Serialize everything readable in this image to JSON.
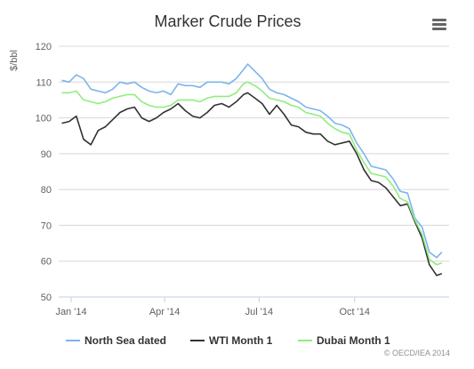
{
  "chart_data": {
    "type": "line",
    "title": "Marker Crude Prices",
    "ylabel": "$/bbl",
    "xlabel": "",
    "ylim": [
      50,
      120
    ],
    "yticks": [
      50,
      60,
      70,
      80,
      90,
      100,
      110,
      120
    ],
    "xlim": [
      "2013-12-20",
      "2014-12-31"
    ],
    "xticks": [
      {
        "date": "2014-01-01",
        "label": "Jan '14"
      },
      {
        "date": "2014-04-01",
        "label": "Apr '14"
      },
      {
        "date": "2014-07-01",
        "label": "Jul '14"
      },
      {
        "date": "2014-10-01",
        "label": "Oct '14"
      }
    ],
    "grid": true,
    "legend_position": "bottom",
    "colors": {
      "north_sea": "#7cb5ec",
      "wti": "#333333",
      "dubai": "#90ed7d"
    },
    "series": [
      {
        "name": "North Sea dated",
        "key": "north_sea",
        "points": [
          [
            "2013-12-23",
            110.5
          ],
          [
            "2013-12-30",
            110.0
          ],
          [
            "2014-01-06",
            112.0
          ],
          [
            "2014-01-13",
            111.0
          ],
          [
            "2014-01-20",
            108.0
          ],
          [
            "2014-01-27",
            107.5
          ],
          [
            "2014-02-03",
            107.0
          ],
          [
            "2014-02-10",
            108.0
          ],
          [
            "2014-02-17",
            110.0
          ],
          [
            "2014-02-24",
            109.5
          ],
          [
            "2014-03-03",
            110.0
          ],
          [
            "2014-03-10",
            108.5
          ],
          [
            "2014-03-17",
            107.5
          ],
          [
            "2014-03-24",
            107.0
          ],
          [
            "2014-03-31",
            107.5
          ],
          [
            "2014-04-07",
            106.5
          ],
          [
            "2014-04-14",
            109.5
          ],
          [
            "2014-04-21",
            109.0
          ],
          [
            "2014-04-28",
            109.0
          ],
          [
            "2014-05-05",
            108.5
          ],
          [
            "2014-05-12",
            110.0
          ],
          [
            "2014-05-19",
            110.0
          ],
          [
            "2014-05-26",
            110.0
          ],
          [
            "2014-06-02",
            109.5
          ],
          [
            "2014-06-09",
            111.0
          ],
          [
            "2014-06-16",
            113.5
          ],
          [
            "2014-06-20",
            115.0
          ],
          [
            "2014-06-27",
            113.0
          ],
          [
            "2014-07-04",
            111.0
          ],
          [
            "2014-07-11",
            108.0
          ],
          [
            "2014-07-18",
            107.0
          ],
          [
            "2014-07-25",
            106.5
          ],
          [
            "2014-08-01",
            105.5
          ],
          [
            "2014-08-08",
            104.5
          ],
          [
            "2014-08-15",
            103.0
          ],
          [
            "2014-08-22",
            102.5
          ],
          [
            "2014-08-29",
            102.0
          ],
          [
            "2014-09-05",
            100.5
          ],
          [
            "2014-09-12",
            98.5
          ],
          [
            "2014-09-19",
            98.0
          ],
          [
            "2014-09-26",
            97.0
          ],
          [
            "2014-10-03",
            93.0
          ],
          [
            "2014-10-10",
            90.0
          ],
          [
            "2014-10-17",
            86.5
          ],
          [
            "2014-10-24",
            86.0
          ],
          [
            "2014-10-31",
            85.5
          ],
          [
            "2014-11-07",
            83.0
          ],
          [
            "2014-11-14",
            79.5
          ],
          [
            "2014-11-21",
            79.0
          ],
          [
            "2014-11-28",
            72.0
          ],
          [
            "2014-12-05",
            69.5
          ],
          [
            "2014-12-12",
            62.5
          ],
          [
            "2014-12-19",
            61.0
          ],
          [
            "2014-12-24",
            62.5
          ]
        ]
      },
      {
        "name": "WTI Month 1",
        "key": "wti",
        "points": [
          [
            "2013-12-23",
            98.5
          ],
          [
            "2013-12-30",
            99.0
          ],
          [
            "2014-01-06",
            100.5
          ],
          [
            "2014-01-13",
            94.0
          ],
          [
            "2014-01-20",
            92.5
          ],
          [
            "2014-01-27",
            96.5
          ],
          [
            "2014-02-03",
            97.5
          ],
          [
            "2014-02-10",
            99.5
          ],
          [
            "2014-02-17",
            101.5
          ],
          [
            "2014-02-24",
            102.5
          ],
          [
            "2014-03-03",
            103.0
          ],
          [
            "2014-03-10",
            100.0
          ],
          [
            "2014-03-17",
            99.0
          ],
          [
            "2014-03-24",
            100.0
          ],
          [
            "2014-03-31",
            101.5
          ],
          [
            "2014-04-07",
            102.5
          ],
          [
            "2014-04-14",
            104.0
          ],
          [
            "2014-04-21",
            102.0
          ],
          [
            "2014-04-28",
            100.5
          ],
          [
            "2014-05-05",
            100.0
          ],
          [
            "2014-05-12",
            101.5
          ],
          [
            "2014-05-19",
            103.5
          ],
          [
            "2014-05-26",
            104.0
          ],
          [
            "2014-06-02",
            103.0
          ],
          [
            "2014-06-09",
            104.5
          ],
          [
            "2014-06-16",
            106.5
          ],
          [
            "2014-06-20",
            107.0
          ],
          [
            "2014-06-27",
            105.5
          ],
          [
            "2014-07-04",
            104.0
          ],
          [
            "2014-07-11",
            101.0
          ],
          [
            "2014-07-18",
            103.5
          ],
          [
            "2014-07-25",
            101.0
          ],
          [
            "2014-08-01",
            98.0
          ],
          [
            "2014-08-08",
            97.5
          ],
          [
            "2014-08-15",
            96.0
          ],
          [
            "2014-08-22",
            95.5
          ],
          [
            "2014-08-29",
            95.5
          ],
          [
            "2014-09-05",
            93.5
          ],
          [
            "2014-09-12",
            92.5
          ],
          [
            "2014-09-19",
            93.0
          ],
          [
            "2014-09-26",
            93.5
          ],
          [
            "2014-10-03",
            90.0
          ],
          [
            "2014-10-10",
            85.5
          ],
          [
            "2014-10-17",
            82.5
          ],
          [
            "2014-10-24",
            82.0
          ],
          [
            "2014-10-31",
            80.5
          ],
          [
            "2014-11-07",
            78.0
          ],
          [
            "2014-11-14",
            75.5
          ],
          [
            "2014-11-21",
            76.0
          ],
          [
            "2014-11-28",
            71.0
          ],
          [
            "2014-12-05",
            66.5
          ],
          [
            "2014-12-12",
            59.0
          ],
          [
            "2014-12-19",
            56.0
          ],
          [
            "2014-12-24",
            56.5
          ]
        ]
      },
      {
        "name": "Dubai Month 1",
        "key": "dubai",
        "points": [
          [
            "2013-12-23",
            107.0
          ],
          [
            "2013-12-30",
            107.0
          ],
          [
            "2014-01-06",
            107.5
          ],
          [
            "2014-01-13",
            105.0
          ],
          [
            "2014-01-20",
            104.5
          ],
          [
            "2014-01-27",
            104.0
          ],
          [
            "2014-02-03",
            104.5
          ],
          [
            "2014-02-10",
            105.5
          ],
          [
            "2014-02-17",
            106.0
          ],
          [
            "2014-02-24",
            106.5
          ],
          [
            "2014-03-03",
            106.5
          ],
          [
            "2014-03-10",
            104.5
          ],
          [
            "2014-03-17",
            103.5
          ],
          [
            "2014-03-24",
            103.0
          ],
          [
            "2014-03-31",
            103.0
          ],
          [
            "2014-04-07",
            103.5
          ],
          [
            "2014-04-14",
            105.0
          ],
          [
            "2014-04-21",
            105.0
          ],
          [
            "2014-04-28",
            105.0
          ],
          [
            "2014-05-05",
            104.5
          ],
          [
            "2014-05-12",
            105.5
          ],
          [
            "2014-05-19",
            106.0
          ],
          [
            "2014-05-26",
            106.0
          ],
          [
            "2014-06-02",
            106.0
          ],
          [
            "2014-06-09",
            107.0
          ],
          [
            "2014-06-16",
            109.5
          ],
          [
            "2014-06-20",
            110.0
          ],
          [
            "2014-06-27",
            109.0
          ],
          [
            "2014-07-04",
            107.5
          ],
          [
            "2014-07-11",
            105.5
          ],
          [
            "2014-07-18",
            105.0
          ],
          [
            "2014-07-25",
            104.5
          ],
          [
            "2014-08-01",
            103.5
          ],
          [
            "2014-08-08",
            103.0
          ],
          [
            "2014-08-15",
            101.5
          ],
          [
            "2014-08-22",
            101.0
          ],
          [
            "2014-08-29",
            100.5
          ],
          [
            "2014-09-05",
            98.5
          ],
          [
            "2014-09-12",
            97.0
          ],
          [
            "2014-09-19",
            96.0
          ],
          [
            "2014-09-26",
            95.5
          ],
          [
            "2014-10-03",
            91.0
          ],
          [
            "2014-10-10",
            87.5
          ],
          [
            "2014-10-17",
            84.5
          ],
          [
            "2014-10-24",
            84.0
          ],
          [
            "2014-10-31",
            83.5
          ],
          [
            "2014-11-07",
            81.0
          ],
          [
            "2014-11-14",
            77.5
          ],
          [
            "2014-11-21",
            76.5
          ],
          [
            "2014-11-28",
            71.5
          ],
          [
            "2014-12-05",
            67.5
          ],
          [
            "2014-12-12",
            60.5
          ],
          [
            "2014-12-19",
            59.0
          ],
          [
            "2014-12-24",
            59.5
          ]
        ]
      }
    ]
  },
  "credit": "© OECD/IEA 2014",
  "menu": {
    "icon": "hamburger-menu-icon"
  }
}
